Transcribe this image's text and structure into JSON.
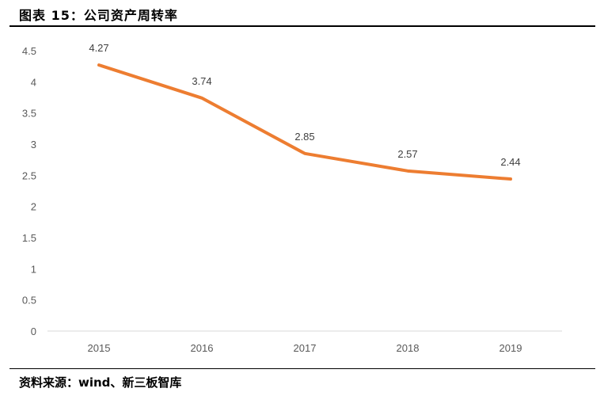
{
  "header": {
    "title": "图表 15：公司资产周转率"
  },
  "footer": {
    "source": "资料来源：wind、新三板智库"
  },
  "colors": {
    "line": "#ED7D31",
    "axis": "#D9D9D9",
    "tick_text": "#595959"
  },
  "chart_data": {
    "type": "line",
    "title": "图表 15：公司资产周转率",
    "categories": [
      "2015",
      "2016",
      "2017",
      "2018",
      "2019"
    ],
    "series": [
      {
        "name": "资产周转率",
        "values": [
          4.27,
          3.74,
          2.85,
          2.57,
          2.44
        ]
      }
    ],
    "data_labels": [
      "4.27",
      "3.74",
      "2.85",
      "2.57",
      "2.44"
    ],
    "xlabel": "",
    "ylabel": "",
    "ylim": [
      0,
      4.5
    ],
    "yticks": [
      "0",
      "0.5",
      "1",
      "1.5",
      "2",
      "2.5",
      "3",
      "3.5",
      "4",
      "4.5"
    ],
    "grid": false,
    "legend": "none"
  }
}
